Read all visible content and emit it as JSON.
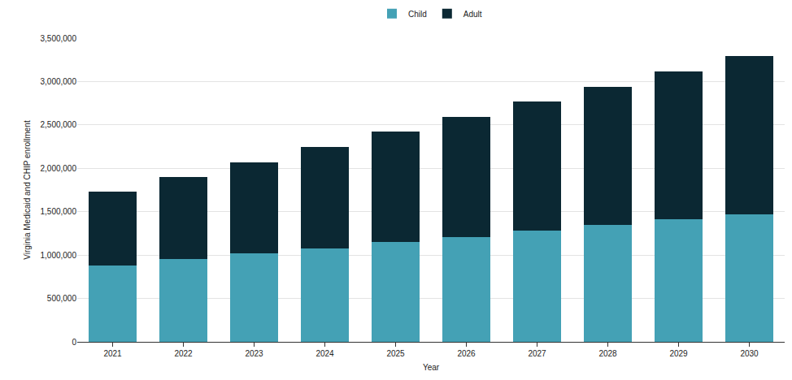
{
  "chart_data": {
    "type": "bar",
    "stacked": true,
    "grid": true,
    "legend": "top",
    "x_label": "Year",
    "y_label": "Virginia Medicaid and CHIP enrollment",
    "categories": [
      "2021",
      "2022",
      "2023",
      "2024",
      "2025",
      "2026",
      "2027",
      "2028",
      "2029",
      "2030"
    ],
    "series": [
      {
        "name": "Child",
        "color": "#44a1b5",
        "values": [
          880000,
          950000,
          1020000,
          1080000,
          1150000,
          1210000,
          1280000,
          1350000,
          1410000,
          1470000
        ]
      },
      {
        "name": "Adult",
        "color": "#0b2833",
        "values": [
          850000,
          950000,
          1050000,
          1170000,
          1270000,
          1380000,
          1490000,
          1590000,
          1710000,
          1820000
        ]
      }
    ],
    "ylim": [
      0,
      3500000
    ],
    "yticks": [
      0,
      {
        "value": 500000,
        "label": "500,000"
      },
      {
        "value": 1000000,
        "label": "1,000,000"
      },
      {
        "value": 1500000,
        "label": "1,500,000"
      },
      {
        "value": 2000000,
        "label": "2,000,000"
      },
      {
        "value": 2500000,
        "label": "2,500,000"
      },
      {
        "value": 3000000,
        "label": "3,000,000"
      },
      {
        "value": 3500000,
        "label": "3,500,000"
      }
    ]
  }
}
